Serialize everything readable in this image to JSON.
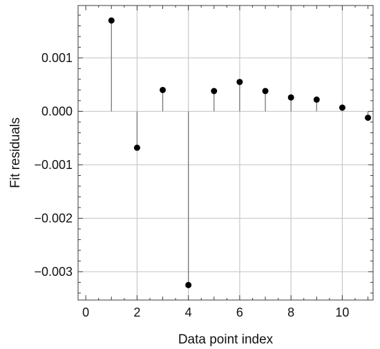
{
  "chart_data": {
    "type": "scatter",
    "style": "stem",
    "title": "",
    "xlabel": "Data point index",
    "ylabel": "Fit residuals",
    "xlim": [
      -0.3,
      11.2
    ],
    "ylim": [
      -0.00353,
      0.00198
    ],
    "grid": true,
    "x_ticks": [
      0,
      2,
      4,
      6,
      8,
      10
    ],
    "x_tick_labels": [
      "0",
      "2",
      "4",
      "6",
      "8",
      "10"
    ],
    "y_ticks": [
      0.001,
      0.0,
      -0.001,
      -0.002,
      -0.003
    ],
    "y_tick_labels": [
      "0.001",
      "0.000",
      "−0.001",
      "−0.002",
      "−0.003"
    ],
    "x_grid": [
      2,
      4,
      6,
      8,
      10
    ],
    "y_grid": [
      0.001,
      0.0,
      -0.001,
      -0.002,
      -0.003
    ],
    "series": [
      {
        "x": [
          1,
          2,
          3,
          4,
          5,
          6,
          7,
          8,
          9,
          10,
          11
        ],
        "y": [
          0.0017,
          -0.00068,
          0.0004,
          -0.00325,
          0.00038,
          0.00055,
          0.00038,
          0.00026,
          0.00022,
          7e-05,
          -0.00012
        ]
      }
    ],
    "colors": {
      "point": "#000000",
      "stem": "#6e6e6e",
      "grid": "#c8c8c8",
      "frame": "#3a3a3a"
    }
  }
}
